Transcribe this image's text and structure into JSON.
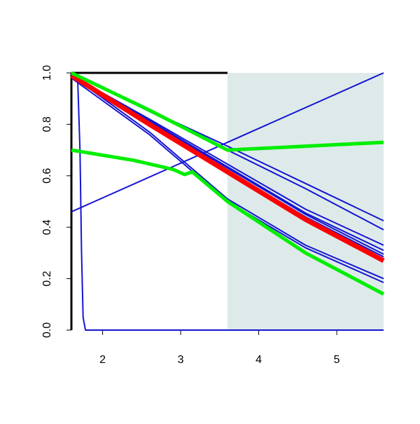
{
  "chart_data": {
    "type": "line",
    "xlim": [
      1.6,
      5.6
    ],
    "ylim": [
      0,
      1
    ],
    "xticks": [
      2,
      3,
      4,
      5
    ],
    "yticks": [
      {
        "value": 0,
        "label": "0.0"
      },
      {
        "value": 0.2,
        "label": "0.2"
      },
      {
        "value": 0.4,
        "label": "0.4"
      },
      {
        "value": 0.6,
        "label": "0.6"
      },
      {
        "value": 0.8,
        "label": "0.8"
      },
      {
        "value": 1,
        "label": "1.0"
      }
    ],
    "shaded_region": {
      "xlim": [
        3.6,
        5.6
      ],
      "color": "#deeaea"
    },
    "series": [
      {
        "color": "#1414d2",
        "width": 2,
        "x": [
          1.6,
          5.6
        ],
        "values": [
          0.46,
          1.0
        ]
      },
      {
        "color": "#1414d2",
        "width": 2,
        "x": [
          1.6,
          1.68,
          1.71,
          1.73,
          1.75,
          1.78,
          5.6
        ],
        "values": [
          1.0,
          0.98,
          0.7,
          0.3,
          0.05,
          0,
          0
        ]
      },
      {
        "color": "#1414d2",
        "width": 2,
        "x": [
          1.6,
          2.6,
          3.6,
          4.6,
          5.6
        ],
        "values": [
          1.0,
          0.855,
          0.715,
          0.57,
          0.425
        ]
      },
      {
        "color": "#1414d2",
        "width": 2,
        "x": [
          1.6,
          2.6,
          3.6,
          4.6,
          5.6
        ],
        "values": [
          1.0,
          0.85,
          0.7,
          0.55,
          0.39
        ]
      },
      {
        "color": "#1414d2",
        "width": 2,
        "x": [
          1.6,
          2.6,
          3.6,
          4.6,
          5.6
        ],
        "values": [
          0.99,
          0.82,
          0.645,
          0.47,
          0.33
        ]
      },
      {
        "color": "#1414d2",
        "width": 2,
        "x": [
          1.6,
          2.6,
          3.6,
          4.6,
          5.6
        ],
        "values": [
          0.99,
          0.815,
          0.635,
          0.455,
          0.31
        ]
      },
      {
        "color": "#1414d2",
        "width": 2,
        "x": [
          1.6,
          2.6,
          3.6,
          4.6,
          5.6
        ],
        "values": [
          0.99,
          0.81,
          0.63,
          0.45,
          0.295
        ]
      },
      {
        "color": "#1414d2",
        "width": 2,
        "x": [
          1.6,
          2.6,
          3.6,
          4.6,
          5.6
        ],
        "values": [
          0.99,
          0.8,
          0.62,
          0.44,
          0.285
        ]
      },
      {
        "color": "#1414d2",
        "width": 2,
        "x": [
          1.6,
          2.6,
          3.6,
          4.6,
          5.6
        ],
        "values": [
          0.99,
          0.77,
          0.51,
          0.33,
          0.2
        ]
      },
      {
        "color": "#1414d2",
        "width": 2,
        "x": [
          1.6,
          2.6,
          3.6,
          4.6,
          5.6
        ],
        "values": [
          0.98,
          0.76,
          0.5,
          0.32,
          0.185
        ]
      },
      {
        "color": "#ff0000",
        "width": 7,
        "x": [
          1.6,
          2.6,
          3.6,
          4.6,
          5.6
        ],
        "values": [
          0.99,
          0.8,
          0.615,
          0.43,
          0.27
        ]
      },
      {
        "color": "#00ee00",
        "width": 5,
        "x": [
          1.6,
          2.6,
          3.6,
          4.6,
          5.6
        ],
        "values": [
          1.0,
          0.855,
          0.7,
          0.715,
          0.73
        ]
      },
      {
        "color": "#00ee00",
        "width": 5,
        "x": [
          1.6,
          2.4,
          2.9,
          3.05,
          3.1,
          3.15,
          3.6,
          4.6,
          5.6
        ],
        "values": [
          0.7,
          0.66,
          0.625,
          0.605,
          0.61,
          0.615,
          0.5,
          0.3,
          0.14
        ]
      }
    ]
  }
}
